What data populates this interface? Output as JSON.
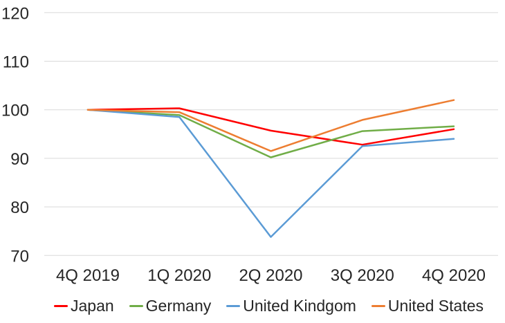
{
  "chart_data": {
    "type": "line",
    "title": "",
    "xlabel": "",
    "ylabel": "",
    "categories": [
      "4Q 2019",
      "1Q 2020",
      "2Q 2020",
      "3Q 2020",
      "4Q 2020"
    ],
    "series": [
      {
        "name": "Japan",
        "color": "#FF0000",
        "values": [
          100,
          100.3,
          95.7,
          92.8,
          96.0
        ]
      },
      {
        "name": "Germany",
        "color": "#70AD47",
        "values": [
          100,
          98.9,
          90.2,
          95.6,
          96.6
        ]
      },
      {
        "name": "United Kindgom",
        "color": "#5B9BD5",
        "values": [
          100,
          98.5,
          73.8,
          92.5,
          94.0
        ]
      },
      {
        "name": "United States",
        "color": "#ED7D31",
        "values": [
          100,
          99.5,
          91.5,
          97.9,
          102.0
        ]
      }
    ],
    "ylim": [
      70,
      120
    ],
    "yticks": [
      120,
      110,
      100,
      90,
      80,
      70
    ],
    "grid": "horizontal-only",
    "legend_position": "bottom",
    "colors": {
      "gridline": "#D9D9D9",
      "text": "#262626",
      "background": "#FFFFFF"
    }
  }
}
